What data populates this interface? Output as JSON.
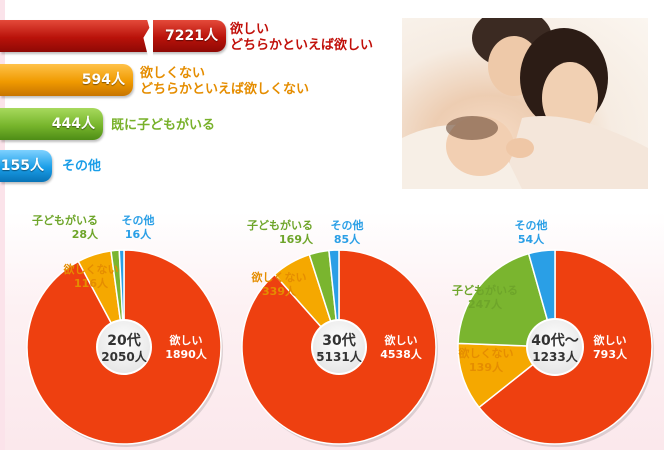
{
  "summary": {
    "bars": [
      {
        "value_label": "7221人",
        "label_line1": "欲しい",
        "label_line2": "どちらかといえば欲しい",
        "color": "#c1100a",
        "value": 7221
      },
      {
        "value_label": "594人",
        "label_line1": "欲しくない",
        "label_line2": "どちらかといえば欲しくない",
        "color": "#f09a00",
        "value": 594
      },
      {
        "value_label": "444人",
        "label_line1": "既に子どもがいる",
        "label_line2": "",
        "color": "#77b52c",
        "value": 444
      },
      {
        "value_label": "155人",
        "label_line1": "その他",
        "label_line2": "",
        "color": "#1a9ee8",
        "value": 155
      }
    ]
  },
  "colors": {
    "want": "#ee4010",
    "dont_want": "#f5a800",
    "has_children": "#7ab52f",
    "other": "#2a9fe6"
  },
  "chart_data": [
    {
      "type": "pie",
      "center_title": "20代",
      "center_total": "2050人",
      "total": 2050,
      "slices": [
        {
          "label": "欲しい",
          "value": 1890,
          "value_label": "1890人"
        },
        {
          "label": "欲しくない",
          "value": 116,
          "value_label": "116人"
        },
        {
          "label": "子どもがいる",
          "value": 28,
          "value_label": "28人"
        },
        {
          "label": "その他",
          "value": 16,
          "value_label": "16人"
        }
      ]
    },
    {
      "type": "pie",
      "center_title": "30代",
      "center_total": "5131人",
      "total": 5131,
      "slices": [
        {
          "label": "欲しい",
          "value": 4538,
          "value_label": "4538人"
        },
        {
          "label": "欲しくない",
          "value": 339,
          "value_label": "339人"
        },
        {
          "label": "子どもがいる",
          "value": 169,
          "value_label": "169人"
        },
        {
          "label": "その他",
          "value": 85,
          "value_label": "85人"
        }
      ]
    },
    {
      "type": "pie",
      "center_title": "40代～",
      "center_total": "1233人",
      "total": 1233,
      "slices": [
        {
          "label": "欲しい",
          "value": 793,
          "value_label": "793人"
        },
        {
          "label": "欲しくない",
          "value": 139,
          "value_label": "139人"
        },
        {
          "label": "子どもがいる",
          "value": 247,
          "value_label": "247人"
        },
        {
          "label": "その他",
          "value": 54,
          "value_label": "54人"
        }
      ]
    }
  ]
}
